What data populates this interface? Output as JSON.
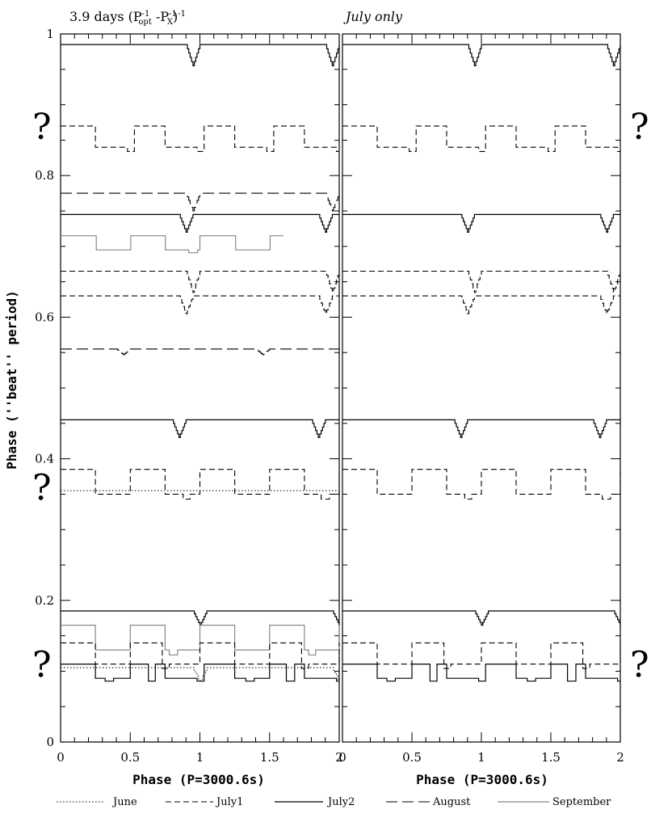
{
  "chart_data": {
    "type": "line",
    "panels": [
      {
        "id": "left",
        "title": "3.9 days (P⁻¹ₒₚₜ −Pₓ⁻¹)⁻¹",
        "title_parts": {
          "prefix": "3.9 days (P",
          "sup1": "-1",
          "sub1": "opt",
          "mid": " -P",
          "sup2": "-1",
          "sub2": "X",
          "suffix": ")",
          "sup3": "-1"
        },
        "traces": [
          {
            "series": "July2",
            "offset": 0.985,
            "shape": "flat_dip",
            "depth": 0.03,
            "dips": [
              0.95,
              1.95
            ]
          },
          {
            "series": "July1",
            "offset": 0.87,
            "shape": "wave",
            "depth": 0.03,
            "dips": [
              0.5,
              1.0,
              1.5,
              2.0
            ]
          },
          {
            "series": "August",
            "offset": 0.775,
            "shape": "flat_dip",
            "depth": 0.025,
            "dips": [
              0.95,
              1.95
            ]
          },
          {
            "series": "July2",
            "offset": 0.745,
            "shape": "flat_dip",
            "depth": 0.025,
            "dips": [
              0.9,
              1.9
            ]
          },
          {
            "series": "September",
            "offset": 0.715,
            "shape": "wave",
            "depth": 0.02,
            "dips": [
              0.95,
              1.95
            ],
            "xrange": [
              0,
              1.6
            ]
          },
          {
            "series": "July1",
            "offset": 0.665,
            "shape": "flat_dip",
            "depth": 0.03,
            "dips": [
              0.95,
              1.95
            ]
          },
          {
            "series": "July1",
            "offset": 0.63,
            "shape": "flat_dip",
            "depth": 0.025,
            "dips": [
              0.9,
              1.9
            ]
          },
          {
            "series": "August",
            "offset": 0.555,
            "shape": "flat_dip",
            "depth": 0.008,
            "dips": [
              0.45,
              1.45
            ]
          },
          {
            "series": "July2",
            "offset": 0.455,
            "shape": "flat_dip",
            "depth": 0.025,
            "dips": [
              0.85,
              1.85
            ]
          },
          {
            "series": "July1",
            "offset": 0.385,
            "shape": "wave",
            "depth": 0.035,
            "dips": [
              0.9,
              1.9
            ]
          },
          {
            "series": "June",
            "offset": 0.355,
            "shape": "flat",
            "depth": 0.0,
            "dips": [],
            "xrange": [
              0,
              2
            ]
          },
          {
            "series": "July2",
            "offset": 0.185,
            "shape": "flat_dip",
            "depth": 0.02,
            "dips": [
              1.0,
              2.0
            ]
          },
          {
            "series": "September",
            "offset": 0.165,
            "shape": "wave",
            "depth": 0.035,
            "dips": [
              0.8,
              1.8
            ]
          },
          {
            "series": "July1",
            "offset": 0.14,
            "shape": "wave",
            "depth": 0.03,
            "dips": [
              0.75,
              1.75
            ]
          },
          {
            "series": "July2",
            "offset": 0.11,
            "shape": "wave",
            "depth": 0.02,
            "dips": [
              0.35,
              0.65,
              1.0,
              1.35,
              1.65,
              2.0
            ]
          },
          {
            "series": "June",
            "offset": 0.105,
            "shape": "flat_dip",
            "depth": 0.02,
            "dips": [
              1.0,
              2.0
            ]
          }
        ]
      },
      {
        "id": "right",
        "title": "July only",
        "traces": [
          {
            "series": "July2",
            "offset": 0.985,
            "shape": "flat_dip",
            "depth": 0.03,
            "dips": [
              0.95,
              1.95
            ]
          },
          {
            "series": "July1",
            "offset": 0.87,
            "shape": "wave",
            "depth": 0.03,
            "dips": [
              0.5,
              1.0,
              1.5,
              2.0
            ]
          },
          {
            "series": "July2",
            "offset": 0.745,
            "shape": "flat_dip",
            "depth": 0.025,
            "dips": [
              0.9,
              1.9
            ]
          },
          {
            "series": "July1",
            "offset": 0.665,
            "shape": "flat_dip",
            "depth": 0.03,
            "dips": [
              0.95,
              1.95
            ]
          },
          {
            "series": "July1",
            "offset": 0.63,
            "shape": "flat_dip",
            "depth": 0.025,
            "dips": [
              0.9,
              1.9
            ]
          },
          {
            "series": "July2",
            "offset": 0.455,
            "shape": "flat_dip",
            "depth": 0.025,
            "dips": [
              0.85,
              1.85
            ]
          },
          {
            "series": "July1",
            "offset": 0.385,
            "shape": "wave",
            "depth": 0.035,
            "dips": [
              0.9,
              1.9
            ]
          },
          {
            "series": "July2",
            "offset": 0.185,
            "shape": "flat_dip",
            "depth": 0.02,
            "dips": [
              1.0,
              2.0
            ]
          },
          {
            "series": "July1",
            "offset": 0.14,
            "shape": "wave",
            "depth": 0.03,
            "dips": [
              0.75,
              1.75
            ]
          },
          {
            "series": "July2",
            "offset": 0.11,
            "shape": "wave",
            "depth": 0.02,
            "dips": [
              0.35,
              0.65,
              1.0,
              1.35,
              1.65,
              2.0
            ]
          }
        ]
      }
    ],
    "xlabel": "Phase (P=3000.6s)",
    "ylabel": "Phase (''beat'' period)",
    "xlim": [
      0,
      2
    ],
    "ylim": [
      0,
      1
    ],
    "x_ticks": [
      0,
      0.5,
      1,
      1.5,
      2
    ],
    "x_tick_labels": [
      "0",
      "0.5",
      "1",
      "1.5",
      "2"
    ],
    "y_ticks": [
      0,
      0.2,
      0.4,
      0.6,
      0.8,
      1
    ],
    "y_tick_labels": [
      "0",
      "0.2",
      "0.4",
      "0.6",
      "0.8",
      "1"
    ],
    "question_marks": [
      {
        "side": "left",
        "y": 0.87,
        "label": "?"
      },
      {
        "side": "left",
        "y": 0.36,
        "label": "?"
      },
      {
        "side": "left",
        "y": 0.11,
        "label": "?"
      },
      {
        "side": "right",
        "y": 0.87,
        "label": "?"
      },
      {
        "side": "right",
        "y": 0.11,
        "label": "?"
      }
    ],
    "legend": {
      "placement": "bottom",
      "entries": [
        {
          "name": "June",
          "style": "dotted",
          "color": "#000000"
        },
        {
          "name": "July1",
          "style": "dashed",
          "color": "#000000"
        },
        {
          "name": "July2",
          "style": "solid",
          "color": "#000000"
        },
        {
          "name": "August",
          "style": "longdash",
          "color": "#000000"
        },
        {
          "name": "September",
          "style": "solid",
          "color": "#888888"
        }
      ]
    },
    "grid": false
  }
}
